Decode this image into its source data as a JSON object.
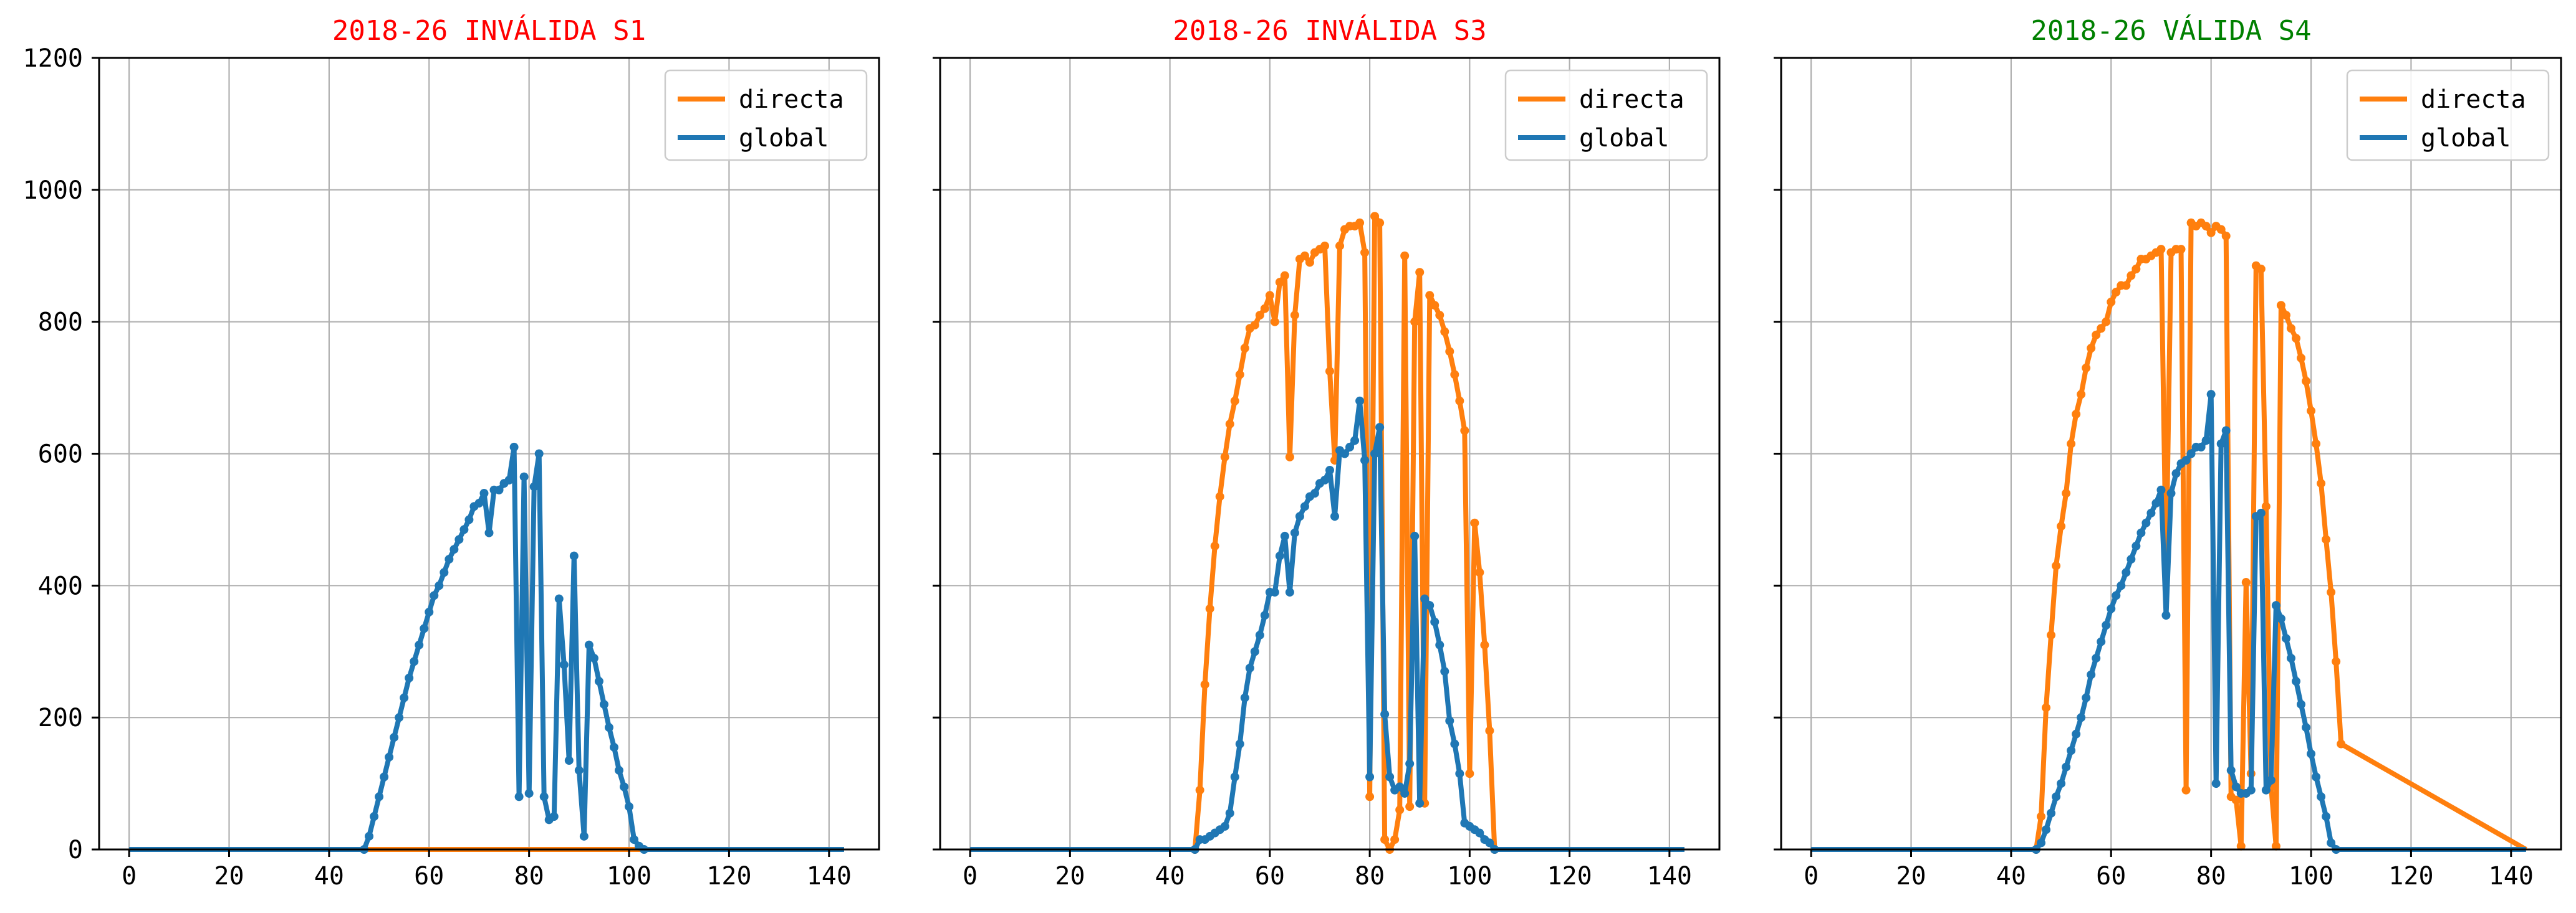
{
  "charts": [
    {
      "title": "2018-26 INVÁLIDA S1",
      "title_color": "#ff0000"
    },
    {
      "title": "2018-26 INVÁLIDA S3",
      "title_color": "#ff0000"
    },
    {
      "title": "2018-26 VÁLIDA S4",
      "title_color": "#008000"
    }
  ],
  "chart_data": [
    {
      "type": "line",
      "title": "2018-26 INVÁLIDA S1",
      "xlim": [
        -6,
        150
      ],
      "ylim": [
        0,
        1200
      ],
      "xticks": [
        0,
        20,
        40,
        60,
        80,
        100,
        120,
        140
      ],
      "yticks": [
        0,
        200,
        400,
        600,
        800,
        1000,
        1200
      ],
      "grid": true,
      "legend_position": "upper right",
      "legend": [
        "directa",
        "global"
      ],
      "series": [
        {
          "name": "directa",
          "color": "#ff7f0e",
          "x": [
            0,
            143
          ],
          "y": [
            0,
            0
          ]
        },
        {
          "name": "global",
          "color": "#1f77b4",
          "x": [
            0,
            47,
            48,
            49,
            50,
            51,
            52,
            53,
            54,
            55,
            56,
            57,
            58,
            59,
            60,
            61,
            62,
            63,
            64,
            65,
            66,
            67,
            68,
            69,
            70,
            71,
            72,
            73,
            74,
            75,
            76,
            77,
            78,
            79,
            80,
            81,
            82,
            83,
            84,
            85,
            86,
            87,
            88,
            89,
            90,
            91,
            92,
            93,
            94,
            95,
            96,
            97,
            98,
            99,
            100,
            101,
            102,
            103,
            104,
            143
          ],
          "y": [
            0,
            0,
            20,
            50,
            80,
            110,
            140,
            170,
            200,
            230,
            260,
            285,
            310,
            335,
            360,
            385,
            400,
            420,
            440,
            455,
            470,
            485,
            500,
            520,
            525,
            540,
            480,
            545,
            545,
            555,
            560,
            610,
            80,
            565,
            85,
            550,
            600,
            80,
            45,
            50,
            380,
            280,
            135,
            445,
            120,
            20,
            310,
            290,
            255,
            220,
            185,
            155,
            120,
            95,
            65,
            15,
            5,
            0,
            0,
            0
          ]
        }
      ]
    },
    {
      "type": "line",
      "title": "2018-26 INVÁLIDA S3",
      "xlim": [
        -6,
        150
      ],
      "ylim": [
        0,
        1200
      ],
      "xticks": [
        0,
        20,
        40,
        60,
        80,
        100,
        120,
        140
      ],
      "yticks": [
        0,
        200,
        400,
        600,
        800,
        1000,
        1200
      ],
      "grid": true,
      "legend_position": "upper right",
      "legend": [
        "directa",
        "global"
      ],
      "series": [
        {
          "name": "directa",
          "color": "#ff7f0e",
          "x": [
            0,
            45,
            46,
            47,
            48,
            49,
            50,
            51,
            52,
            53,
            54,
            55,
            56,
            57,
            58,
            59,
            60,
            61,
            62,
            63,
            64,
            65,
            66,
            67,
            68,
            69,
            70,
            71,
            72,
            73,
            74,
            75,
            76,
            77,
            78,
            79,
            80,
            81,
            82,
            83,
            84,
            85,
            86,
            87,
            88,
            89,
            90,
            91,
            92,
            93,
            94,
            95,
            96,
            97,
            98,
            99,
            100,
            101,
            102,
            103,
            104,
            105,
            106,
            143
          ],
          "y": [
            0,
            0,
            90,
            250,
            365,
            460,
            535,
            595,
            645,
            680,
            720,
            760,
            790,
            795,
            810,
            820,
            840,
            800,
            860,
            870,
            595,
            810,
            895,
            900,
            890,
            905,
            910,
            915,
            725,
            590,
            915,
            940,
            945,
            945,
            950,
            905,
            80,
            960,
            950,
            15,
            0,
            15,
            60,
            900,
            65,
            800,
            875,
            70,
            840,
            825,
            810,
            785,
            755,
            720,
            680,
            635,
            115,
            495,
            420,
            310,
            180,
            0,
            0,
            0
          ]
        },
        {
          "name": "global",
          "color": "#1f77b4",
          "x": [
            0,
            45,
            46,
            47,
            48,
            49,
            50,
            51,
            52,
            53,
            54,
            55,
            56,
            57,
            58,
            59,
            60,
            61,
            62,
            63,
            64,
            65,
            66,
            67,
            68,
            69,
            70,
            71,
            72,
            73,
            74,
            75,
            76,
            77,
            78,
            79,
            80,
            81,
            82,
            83,
            84,
            85,
            86,
            87,
            88,
            89,
            90,
            91,
            92,
            93,
            94,
            95,
            96,
            97,
            98,
            99,
            100,
            101,
            102,
            103,
            104,
            105,
            106,
            143
          ],
          "y": [
            0,
            0,
            15,
            15,
            20,
            25,
            30,
            35,
            55,
            110,
            160,
            230,
            275,
            300,
            325,
            355,
            390,
            390,
            445,
            475,
            390,
            480,
            505,
            520,
            535,
            540,
            555,
            560,
            575,
            505,
            605,
            600,
            610,
            620,
            680,
            590,
            110,
            600,
            640,
            205,
            110,
            90,
            95,
            85,
            130,
            475,
            70,
            380,
            370,
            345,
            310,
            270,
            195,
            160,
            115,
            40,
            35,
            30,
            25,
            15,
            10,
            0,
            0,
            0
          ]
        }
      ]
    },
    {
      "type": "line",
      "title": "2018-26 VÁLIDA S4",
      "xlim": [
        -6,
        150
      ],
      "ylim": [
        0,
        1200
      ],
      "xticks": [
        0,
        20,
        40,
        60,
        80,
        100,
        120,
        140
      ],
      "yticks": [
        0,
        200,
        400,
        600,
        800,
        1000,
        1200
      ],
      "grid": true,
      "legend_position": "upper right",
      "legend": [
        "directa",
        "global"
      ],
      "series": [
        {
          "name": "directa",
          "color": "#ff7f0e",
          "x": [
            0,
            45,
            46,
            47,
            48,
            49,
            50,
            51,
            52,
            53,
            54,
            55,
            56,
            57,
            58,
            59,
            60,
            61,
            62,
            63,
            64,
            65,
            66,
            67,
            68,
            69,
            70,
            71,
            72,
            73,
            74,
            75,
            76,
            77,
            78,
            79,
            80,
            81,
            82,
            83,
            84,
            85,
            86,
            87,
            88,
            89,
            90,
            91,
            92,
            93,
            94,
            95,
            96,
            97,
            98,
            99,
            100,
            101,
            102,
            103,
            104,
            105,
            106,
            143
          ],
          "y": [
            0,
            0,
            50,
            215,
            325,
            430,
            490,
            540,
            615,
            660,
            690,
            730,
            760,
            780,
            790,
            800,
            830,
            845,
            855,
            855,
            870,
            880,
            895,
            895,
            900,
            905,
            910,
            430,
            905,
            910,
            910,
            90,
            950,
            945,
            950,
            945,
            935,
            945,
            940,
            930,
            80,
            75,
            5,
            405,
            115,
            885,
            880,
            520,
            95,
            5,
            825,
            810,
            790,
            775,
            745,
            710,
            665,
            615,
            555,
            470,
            390,
            285,
            160,
            0
          ]
        },
        {
          "name": "global",
          "color": "#1f77b4",
          "x": [
            0,
            45,
            46,
            47,
            48,
            49,
            50,
            51,
            52,
            53,
            54,
            55,
            56,
            57,
            58,
            59,
            60,
            61,
            62,
            63,
            64,
            65,
            66,
            67,
            68,
            69,
            70,
            71,
            72,
            73,
            74,
            75,
            76,
            77,
            78,
            79,
            80,
            81,
            82,
            83,
            84,
            85,
            86,
            87,
            88,
            89,
            90,
            91,
            92,
            93,
            94,
            95,
            96,
            97,
            98,
            99,
            100,
            101,
            102,
            103,
            104,
            105,
            106,
            143
          ],
          "y": [
            0,
            0,
            10,
            30,
            55,
            80,
            100,
            125,
            150,
            175,
            200,
            230,
            265,
            290,
            315,
            340,
            365,
            385,
            400,
            420,
            440,
            460,
            480,
            495,
            510,
            525,
            545,
            355,
            540,
            570,
            585,
            590,
            600,
            610,
            610,
            620,
            690,
            100,
            615,
            635,
            120,
            95,
            85,
            85,
            90,
            505,
            510,
            90,
            105,
            370,
            350,
            320,
            290,
            255,
            220,
            185,
            145,
            110,
            80,
            50,
            10,
            0,
            0,
            0
          ]
        }
      ]
    }
  ]
}
